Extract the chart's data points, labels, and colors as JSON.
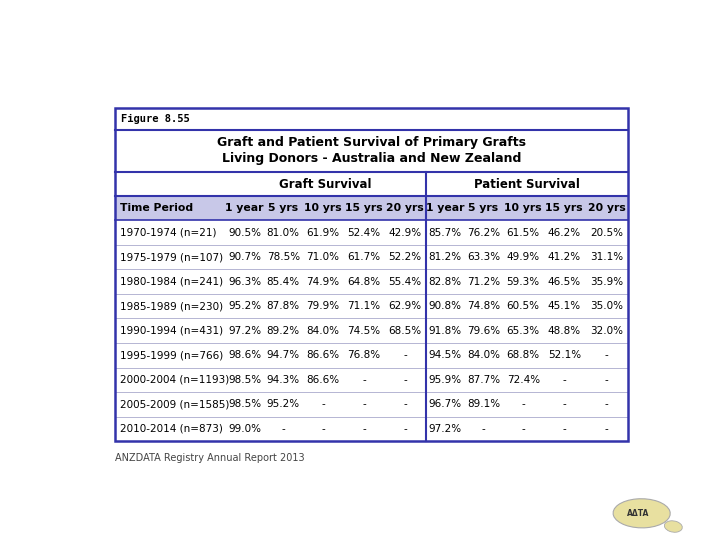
{
  "figure_label": "Figure 8.55",
  "title_line1": "Graft and Patient Survival of Primary Grafts",
  "title_line2": "Living Donors - Australia and New Zealand",
  "graft_survival_label": "Graft Survival",
  "patient_survival_label": "Patient Survival",
  "col_headers": [
    "Time Period",
    "1 year",
    "5 yrs",
    "10 yrs",
    "15 yrs",
    "20 yrs",
    "1 year",
    "5 yrs",
    "10 yrs",
    "15 yrs",
    "20 yrs"
  ],
  "rows": [
    [
      "1970-1974 (n=21)",
      "90.5%",
      "81.0%",
      "61.9%",
      "52.4%",
      "42.9%",
      "85.7%",
      "76.2%",
      "61.5%",
      "46.2%",
      "20.5%"
    ],
    [
      "1975-1979 (n=107)",
      "90.7%",
      "78.5%",
      "71.0%",
      "61.7%",
      "52.2%",
      "81.2%",
      "63.3%",
      "49.9%",
      "41.2%",
      "31.1%"
    ],
    [
      "1980-1984 (n=241)",
      "96.3%",
      "85.4%",
      "74.9%",
      "64.8%",
      "55.4%",
      "82.8%",
      "71.2%",
      "59.3%",
      "46.5%",
      "35.9%"
    ],
    [
      "1985-1989 (n=230)",
      "95.2%",
      "87.8%",
      "79.9%",
      "71.1%",
      "62.9%",
      "90.8%",
      "74.8%",
      "60.5%",
      "45.1%",
      "35.0%"
    ],
    [
      "1990-1994 (n=431)",
      "97.2%",
      "89.2%",
      "84.0%",
      "74.5%",
      "68.5%",
      "91.8%",
      "79.6%",
      "65.3%",
      "48.8%",
      "32.0%"
    ],
    [
      "1995-1999 (n=766)",
      "98.6%",
      "94.7%",
      "86.6%",
      "76.8%",
      "-",
      "94.5%",
      "84.0%",
      "68.8%",
      "52.1%",
      "-"
    ],
    [
      "2000-2004 (n=1193)",
      "98.5%",
      "94.3%",
      "86.6%",
      "-",
      "-",
      "95.9%",
      "87.7%",
      "72.4%",
      "-",
      "-"
    ],
    [
      "2005-2009 (n=1585)",
      "98.5%",
      "95.2%",
      "-",
      "-",
      "-",
      "96.7%",
      "89.1%",
      "-",
      "-",
      "-"
    ],
    [
      "2010-2014 (n=873)",
      "99.0%",
      "-",
      "-",
      "-",
      "-",
      "97.2%",
      "-",
      "-",
      "-",
      "-"
    ]
  ],
  "header_bg": "#c8c8e8",
  "border_color": "#3333aa",
  "thin_line_color": "#3333aa",
  "divider_color": "#3333aa",
  "footer_text": "ANZDATA Registry Annual Report 2013",
  "fig_bg": "#ffffff",
  "row_line_color": "#aaaacc"
}
